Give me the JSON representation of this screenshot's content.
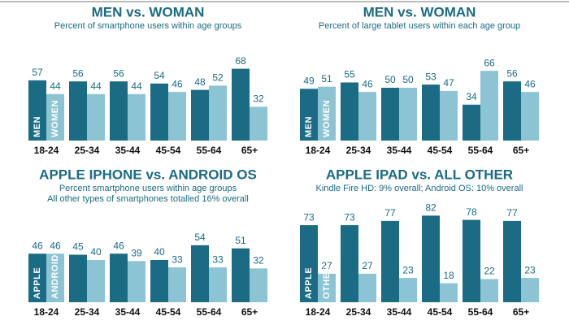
{
  "chart_data": [
    {
      "type": "bar",
      "title": "MEN vs. WOMAN",
      "subtitle": [
        "Percent of smartphone users within age groups"
      ],
      "categories": [
        "18-24",
        "25-34",
        "35-44",
        "45-54",
        "55-64",
        "65+"
      ],
      "series": [
        {
          "name": "MEN",
          "color": "#1b6b84",
          "values": [
            57,
            56,
            56,
            54,
            48,
            68
          ]
        },
        {
          "name": "WOMEN",
          "color": "#8cc4d4",
          "values": [
            44,
            44,
            44,
            46,
            52,
            32
          ]
        }
      ]
    },
    {
      "type": "bar",
      "title": "MEN vs. WOMAN",
      "subtitle": [
        "Percent of large tablet users within each age group"
      ],
      "categories": [
        "18-24",
        "25-34",
        "35-44",
        "45-54",
        "55-64",
        "65+"
      ],
      "series": [
        {
          "name": "MEN",
          "color": "#1b6b84",
          "values": [
            49,
            55,
            50,
            53,
            34,
            56
          ]
        },
        {
          "name": "WOMEN",
          "color": "#8cc4d4",
          "values": [
            51,
            46,
            50,
            47,
            66,
            46
          ]
        }
      ]
    },
    {
      "type": "bar",
      "title": "APPLE IPHONE vs. ANDROID OS",
      "subtitle": [
        "Percent smartphone users within age groups",
        "All other types of smartphones totalled 16% overall"
      ],
      "categories": [
        "18-24",
        "25-34",
        "35-44",
        "45-54",
        "55-64",
        "65+"
      ],
      "series": [
        {
          "name": "APPLE",
          "color": "#1b6b84",
          "values": [
            46,
            45,
            46,
            40,
            54,
            51
          ]
        },
        {
          "name": "ANDROID",
          "color": "#8cc4d4",
          "values": [
            46,
            40,
            39,
            33,
            33,
            32
          ]
        }
      ]
    },
    {
      "type": "bar",
      "title": "APPLE IPAD vs. ALL OTHER",
      "subtitle": [
        "Kindle Fire HD: 9% overall; Android OS: 10% overall"
      ],
      "categories": [
        "18-24",
        "25-34",
        "35-44",
        "45-54",
        "55-64",
        "65+"
      ],
      "series": [
        {
          "name": "APPLE",
          "color": "#1b6b84",
          "values": [
            73,
            73,
            77,
            82,
            78,
            77
          ]
        },
        {
          "name": "OTHER",
          "color": "#8cc4d4",
          "values": [
            27,
            27,
            23,
            18,
            22,
            23
          ]
        }
      ]
    }
  ]
}
